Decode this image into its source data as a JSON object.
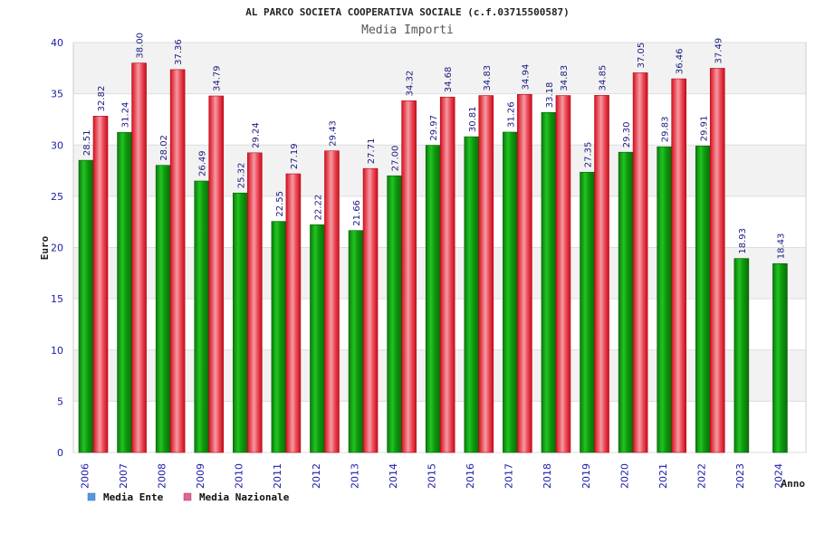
{
  "chart_data": {
    "type": "bar",
    "title": "AL PARCO SOCIETA COOPERATIVA SOCIALE (c.f.03715500587)",
    "subtitle": "Media Importi",
    "xlabel": "Anno",
    "ylabel": "Euro",
    "ylim": [
      0,
      40
    ],
    "yticks": [
      0,
      5,
      10,
      15,
      20,
      25,
      30,
      35,
      40
    ],
    "categories": [
      "2006",
      "2007",
      "2008",
      "2009",
      "2010",
      "2011",
      "2012",
      "2013",
      "2014",
      "2015",
      "2016",
      "2017",
      "2018",
      "2019",
      "2020",
      "2021",
      "2022",
      "2023",
      "2024"
    ],
    "series": [
      {
        "name": "Media Ente",
        "color": "#22bb22",
        "legend_color": "#5599dd",
        "values": [
          28.51,
          31.24,
          28.02,
          26.49,
          25.32,
          22.55,
          22.22,
          21.66,
          27.0,
          29.97,
          30.81,
          31.26,
          33.18,
          27.35,
          29.3,
          29.83,
          29.91,
          18.93,
          18.43
        ],
        "labels": [
          "28.51",
          "31.24",
          "28.02",
          "26.49",
          "25.32",
          "22.55",
          "22.22",
          "21.66",
          "27.00",
          "29.97",
          "30.81",
          "31.26",
          "33.18",
          "27.35",
          "29.30",
          "29.83",
          "29.91",
          "18.93",
          "18.43"
        ]
      },
      {
        "name": "Media Nazionale",
        "color": "#ee3344",
        "legend_color": "#dd6699",
        "values": [
          32.82,
          38.0,
          37.36,
          34.79,
          29.24,
          27.19,
          29.43,
          27.71,
          34.32,
          34.68,
          34.83,
          34.94,
          34.83,
          34.85,
          37.05,
          36.46,
          37.49,
          null,
          null
        ],
        "labels": [
          "32.82",
          "38.00",
          "37.36",
          "34.79",
          "29.24",
          "27.19",
          "29.43",
          "27.71",
          "34.32",
          "34.68",
          "34.83",
          "34.94",
          "34.83",
          "34.85",
          "37.05",
          "36.46",
          "37.49",
          null,
          null
        ]
      }
    ],
    "grid": true,
    "legend_position": "bottom-left"
  }
}
